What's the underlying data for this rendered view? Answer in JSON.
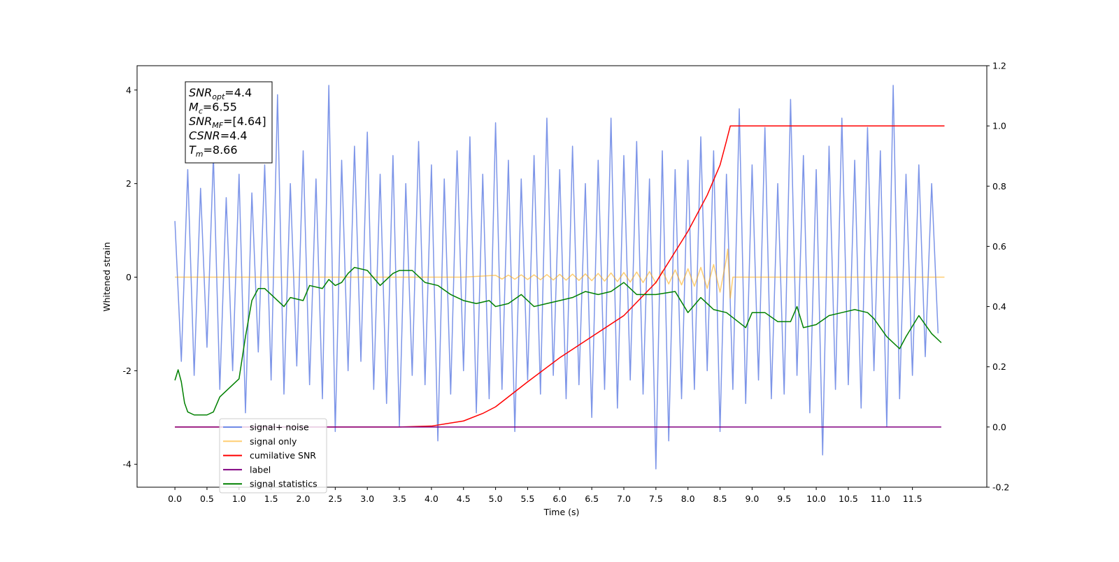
{
  "chart_data": {
    "type": "line",
    "xlabel": "Time (s)",
    "ylabel": "Whitened strain",
    "xlim": [
      -0.59,
      12.66
    ],
    "ylim": [
      -4.49,
      4.52
    ],
    "y2lim": [
      -0.2,
      1.2
    ],
    "xticks": [
      {
        "value": 0,
        "label": "0.0"
      },
      0.5,
      {
        "value": 1,
        "label": "1.0"
      },
      1.5,
      {
        "value": 2,
        "label": "2.0"
      },
      2.5,
      {
        "value": 3,
        "label": "3.0"
      },
      3.5,
      {
        "value": 4,
        "label": "4.0"
      },
      4.5,
      {
        "value": 5,
        "label": "5.0"
      },
      5.5,
      {
        "value": 6,
        "label": "6.0"
      },
      6.5,
      {
        "value": 7,
        "label": "7.0"
      },
      7.5,
      {
        "value": 8,
        "label": "8.0"
      },
      8.5,
      {
        "value": 9,
        "label": "9.0"
      },
      9.5,
      {
        "value": 10,
        "label": "10.0"
      },
      10.5,
      {
        "value": 11,
        "label": "11.0"
      },
      11.5
    ],
    "yticks": [
      -4,
      -2,
      0,
      2,
      4
    ],
    "y2ticks": [
      -0.2,
      {
        "value": 0,
        "label": "0.0"
      },
      0.2,
      0.4,
      0.6,
      0.8,
      {
        "value": 1,
        "label": "1.0"
      },
      1.2
    ],
    "legend": "lower left",
    "annotations": [
      {
        "text": "SNR",
        "sub": "opt",
        "rest": "=4.4"
      },
      {
        "text": "M",
        "sub": "c",
        "rest": "=6.55"
      },
      {
        "text": "SNR",
        "sub": "MF",
        "rest": "=[4.64]"
      },
      {
        "text": "CSNR",
        "rest": "=4.4"
      },
      {
        "text": "T",
        "sub": "m",
        "rest": "=8.66"
      }
    ],
    "series": [
      {
        "name": "signal+ noise",
        "color": "#6f8ae6",
        "x": [
          0,
          0.1,
          0.2,
          0.3,
          0.4,
          0.5,
          0.6,
          0.7,
          0.8,
          0.9,
          1,
          1.1,
          1.2,
          1.3,
          1.4,
          1.5,
          1.6,
          1.7,
          1.8,
          1.9,
          2,
          2.1,
          2.2,
          2.3,
          2.4,
          2.5,
          2.6,
          2.7,
          2.8,
          2.9,
          3,
          3.1,
          3.2,
          3.3,
          3.4,
          3.5,
          3.6,
          3.7,
          3.8,
          3.9,
          4,
          4.1,
          4.2,
          4.3,
          4.4,
          4.5,
          4.6,
          4.7,
          4.8,
          4.9,
          5,
          5.1,
          5.2,
          5.3,
          5.4,
          5.5,
          5.6,
          5.7,
          5.8,
          5.9,
          6,
          6.1,
          6.2,
          6.3,
          6.4,
          6.5,
          6.6,
          6.7,
          6.8,
          6.9,
          7,
          7.1,
          7.2,
          7.3,
          7.4,
          7.5,
          7.6,
          7.7,
          7.8,
          7.9,
          8,
          8.1,
          8.2,
          8.3,
          8.4,
          8.5,
          8.6,
          8.7,
          8.8,
          8.9,
          9,
          9.1,
          9.2,
          9.3,
          9.4,
          9.5,
          9.6,
          9.7,
          9.8,
          9.9,
          10,
          10.1,
          10.2,
          10.3,
          10.4,
          10.5,
          10.6,
          10.7,
          10.8,
          10.9,
          11,
          11.1,
          11.2,
          11.3,
          11.4,
          11.5,
          11.6,
          11.7,
          11.8,
          11.9
        ],
        "values": [
          1.2,
          -1.8,
          2.3,
          -2.1,
          1.9,
          -1.5,
          2.6,
          -2.4,
          1.7,
          -2.0,
          2.2,
          -2.9,
          1.8,
          -1.6,
          2.4,
          -2.2,
          3.9,
          -2.5,
          2.0,
          -1.9,
          2.7,
          -2.3,
          2.1,
          -2.6,
          4.1,
          -3.3,
          2.5,
          -2.0,
          2.8,
          -1.8,
          3.1,
          -2.4,
          2.2,
          -2.7,
          2.6,
          -3.2,
          2.0,
          -2.1,
          2.9,
          -2.3,
          2.4,
          -3.5,
          2.1,
          -2.5,
          2.7,
          -2.0,
          3.0,
          -2.9,
          2.2,
          -2.6,
          3.3,
          -2.4,
          2.5,
          -3.3,
          2.1,
          -2.2,
          2.6,
          -2.5,
          3.4,
          -2.1,
          2.3,
          -2.6,
          2.8,
          -2.3,
          2.0,
          -3.0,
          2.5,
          -2.4,
          3.4,
          -2.8,
          2.6,
          -2.2,
          2.9,
          -2.5,
          2.1,
          -4.1,
          2.7,
          -3.5,
          2.3,
          -2.6,
          2.5,
          -2.4,
          3.0,
          -2.0,
          2.7,
          -3.3,
          2.2,
          -2.4,
          3.6,
          -2.7,
          2.4,
          -2.2,
          3.2,
          -2.6,
          2.0,
          -2.5,
          3.8,
          -2.1,
          2.6,
          -2.9,
          2.3,
          -3.8,
          2.8,
          -2.4,
          3.4,
          -2.3,
          2.5,
          -2.8,
          3.2,
          -2.0,
          2.7,
          -3.2,
          4.1,
          -2.6,
          2.2,
          -2.1,
          2.4,
          -1.7,
          2.0,
          -1.2
        ]
      },
      {
        "name": "signal only",
        "color": "#ffa500",
        "x": [
          0,
          4.5,
          5.0,
          5.1,
          5.2,
          5.3,
          5.4,
          5.5,
          5.6,
          5.7,
          5.8,
          5.9,
          6.0,
          6.1,
          6.2,
          6.3,
          6.4,
          6.5,
          6.6,
          6.7,
          6.8,
          6.9,
          7.0,
          7.1,
          7.2,
          7.3,
          7.4,
          7.5,
          7.6,
          7.7,
          7.8,
          7.9,
          8.0,
          8.1,
          8.2,
          8.3,
          8.4,
          8.5,
          8.6,
          8.62,
          8.66,
          8.7,
          12
        ],
        "values": [
          0,
          0,
          0.04,
          -0.04,
          0.045,
          -0.045,
          0.05,
          -0.05,
          0.05,
          -0.055,
          0.055,
          -0.06,
          0.06,
          -0.065,
          0.065,
          -0.07,
          0.07,
          -0.075,
          0.08,
          -0.085,
          0.09,
          -0.095,
          0.1,
          -0.105,
          0.11,
          -0.115,
          0.12,
          -0.13,
          0.135,
          -0.145,
          0.155,
          -0.165,
          0.18,
          -0.195,
          0.21,
          -0.24,
          0.27,
          -0.32,
          0.4,
          0.6,
          -0.45,
          0,
          0
        ]
      },
      {
        "name": "cumilative SNR",
        "color": "#ff0000",
        "axis": "y2",
        "x": [
          0,
          3.5,
          4.0,
          4.5,
          4.8,
          5.0,
          5.5,
          6.0,
          6.5,
          7.0,
          7.5,
          8.0,
          8.3,
          8.5,
          8.6,
          8.66,
          12
        ],
        "values": [
          0,
          0,
          0.003,
          0.02,
          0.045,
          0.067,
          0.15,
          0.23,
          0.3,
          0.37,
          0.48,
          0.65,
          0.77,
          0.87,
          0.95,
          1.0,
          1.0
        ]
      },
      {
        "name": "label",
        "color": "#800080",
        "axis": "y2",
        "x": [
          0,
          11.95
        ],
        "values": [
          0,
          0
        ]
      },
      {
        "name": "signal statistics",
        "color": "#008000",
        "axis": "y2",
        "x": [
          0,
          0.05,
          0.1,
          0.15,
          0.2,
          0.3,
          0.5,
          0.6,
          0.7,
          0.8,
          0.9,
          1.0,
          1.1,
          1.2,
          1.3,
          1.4,
          1.5,
          1.7,
          1.8,
          2.0,
          2.1,
          2.3,
          2.4,
          2.5,
          2.6,
          2.7,
          2.8,
          3.0,
          3.2,
          3.4,
          3.5,
          3.7,
          3.9,
          4.1,
          4.3,
          4.5,
          4.7,
          4.9,
          5.0,
          5.2,
          5.4,
          5.6,
          5.8,
          6.0,
          6.2,
          6.4,
          6.6,
          6.8,
          7.0,
          7.2,
          7.5,
          7.8,
          8.0,
          8.2,
          8.4,
          8.6,
          8.9,
          9.0,
          9.2,
          9.4,
          9.6,
          9.7,
          9.8,
          10.0,
          10.2,
          10.4,
          10.6,
          10.8,
          10.9,
          11.1,
          11.3,
          11.4,
          11.6,
          11.8,
          11.95
        ],
        "values": [
          0.155,
          0.19,
          0.15,
          0.08,
          0.05,
          0.04,
          0.04,
          0.05,
          0.1,
          0.12,
          0.14,
          0.16,
          0.3,
          0.42,
          0.46,
          0.46,
          0.44,
          0.4,
          0.43,
          0.42,
          0.47,
          0.46,
          0.49,
          0.47,
          0.48,
          0.51,
          0.53,
          0.52,
          0.47,
          0.51,
          0.52,
          0.52,
          0.48,
          0.47,
          0.44,
          0.42,
          0.41,
          0.42,
          0.4,
          0.41,
          0.44,
          0.4,
          0.41,
          0.42,
          0.43,
          0.45,
          0.44,
          0.45,
          0.48,
          0.44,
          0.44,
          0.45,
          0.38,
          0.43,
          0.39,
          0.38,
          0.33,
          0.38,
          0.38,
          0.35,
          0.35,
          0.4,
          0.33,
          0.34,
          0.37,
          0.38,
          0.39,
          0.38,
          0.36,
          0.3,
          0.26,
          0.3,
          0.37,
          0.31,
          0.28
        ]
      }
    ]
  }
}
